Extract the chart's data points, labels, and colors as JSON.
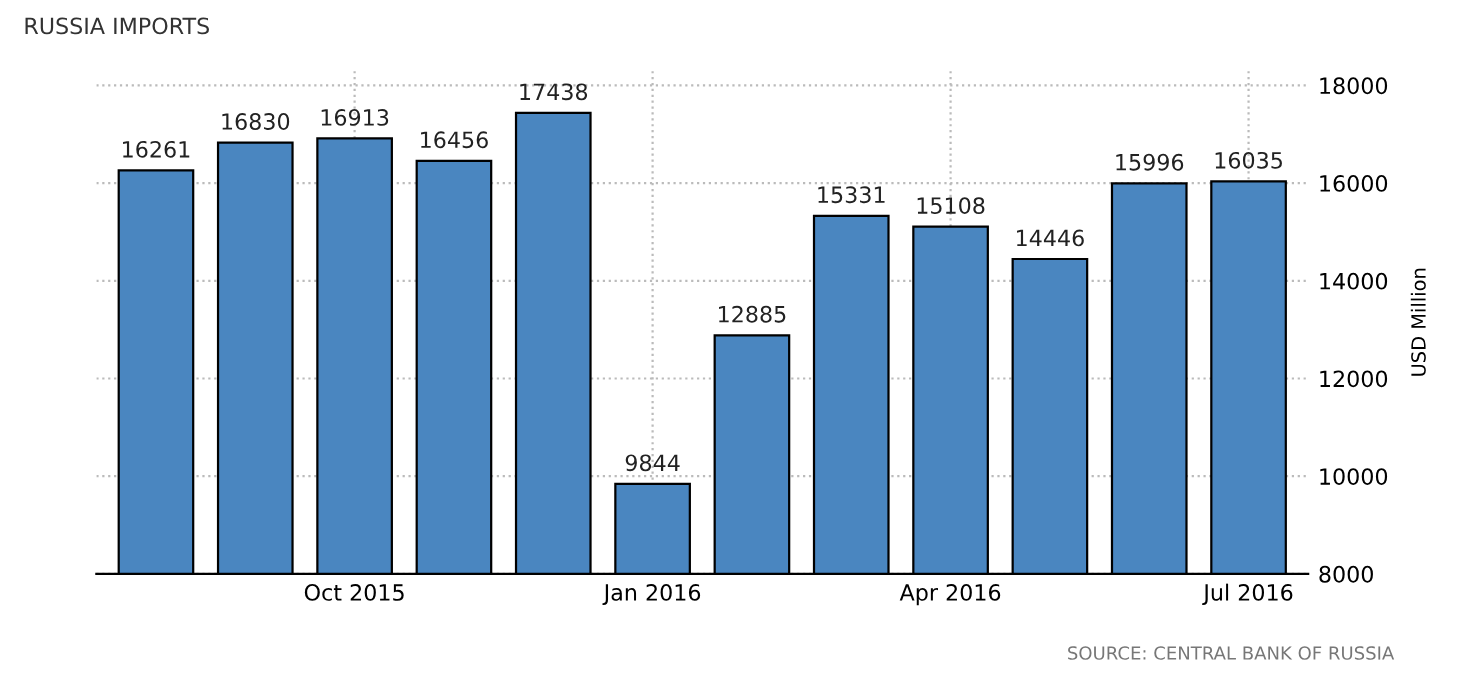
{
  "chart_data": {
    "type": "bar",
    "title": "RUSSIA IMPORTS",
    "ylabel": "USD Million",
    "categories": [
      null,
      null,
      "Oct 2015",
      null,
      null,
      "Jan 2016",
      null,
      null,
      "Apr 2016",
      null,
      null,
      "Jul 2016"
    ],
    "values": [
      16261,
      16830,
      16913,
      16456,
      17438,
      9844,
      12885,
      15331,
      15108,
      14446,
      15996,
      16035
    ],
    "color": "#4a86c0",
    "data_labels": true,
    "ylim": [
      8000,
      18300
    ],
    "yticks": [
      8000,
      10000,
      12000,
      14000,
      16000,
      18000
    ],
    "grid": true,
    "annotations": [
      "SOURCE: CENTRAL BANK OF RUSSIA"
    ]
  }
}
